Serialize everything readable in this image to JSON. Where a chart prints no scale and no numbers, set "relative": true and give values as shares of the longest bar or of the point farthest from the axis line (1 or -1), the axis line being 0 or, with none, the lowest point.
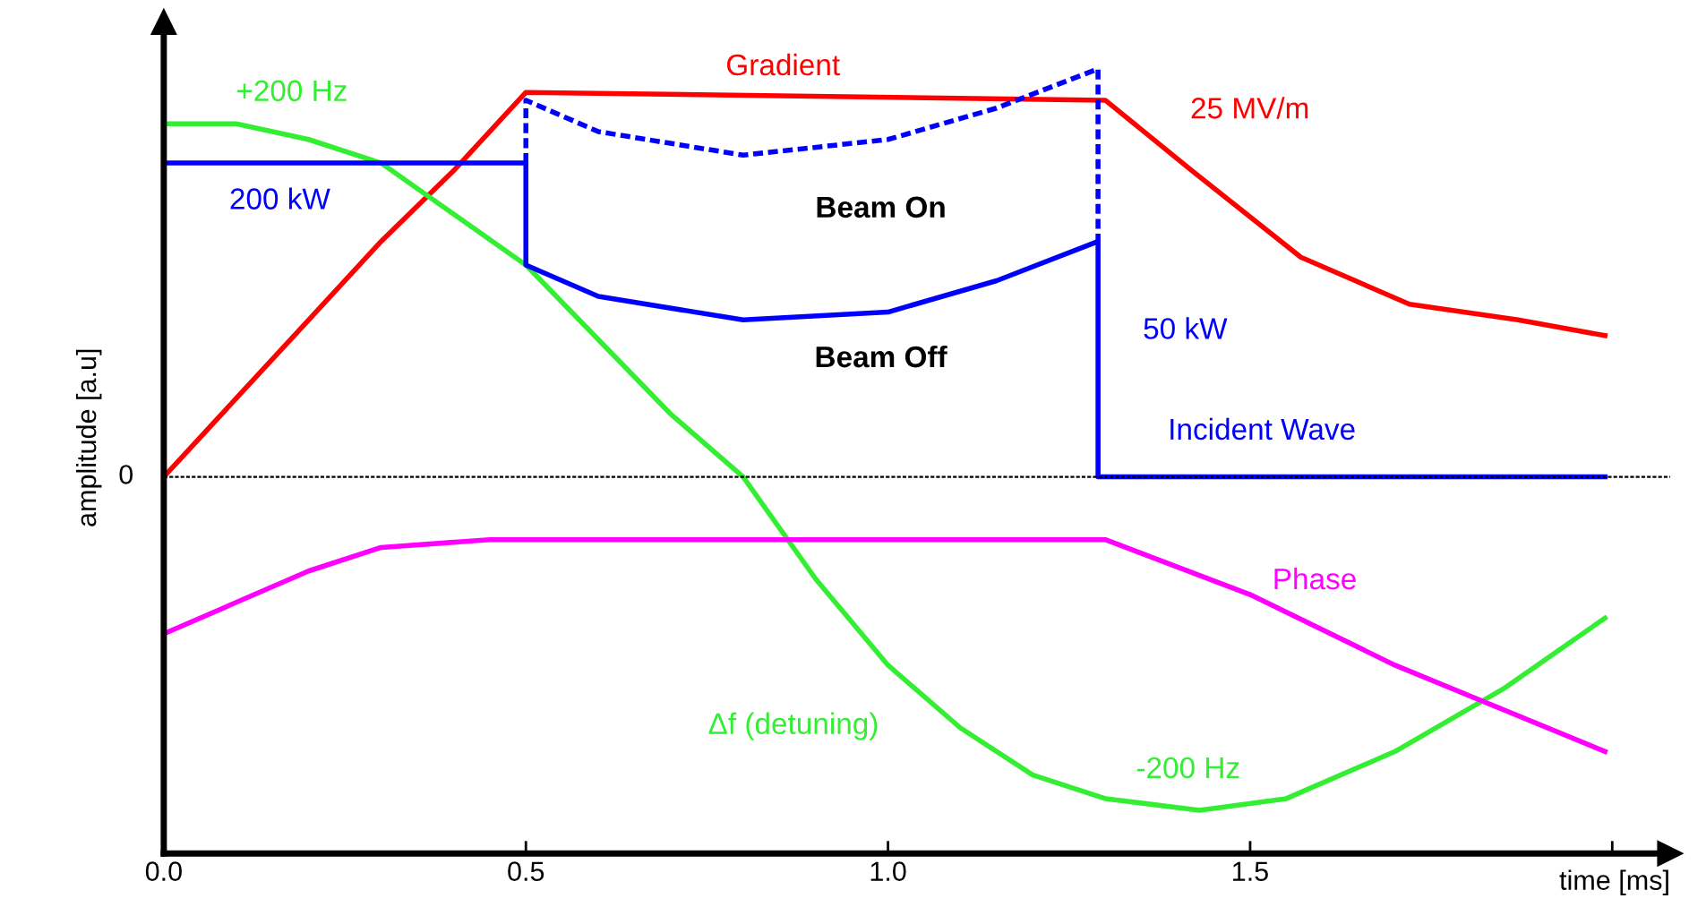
{
  "chart_data": {
    "type": "line",
    "relative": true,
    "xlabel": "time [ms]",
    "ylabel": "amplitude [a.u]",
    "xlim": [
      0,
      2.08
    ],
    "xticks": [
      {
        "value": 0,
        "label": "0.0"
      },
      0.5,
      {
        "value": 1,
        "label": "1.0"
      },
      1.5,
      {
        "value": 2,
        "label": null
      }
    ],
    "grid": false,
    "legend": false,
    "line_style": "solid",
    "marker": "none",
    "ref_lines": [
      {
        "axis": "y",
        "value": 0.48,
        "label": "0",
        "color": "#000000",
        "line_style": "dashed"
      }
    ],
    "series": [
      {
        "name": "Gradient",
        "color": "#ff0000",
        "x": [
          0,
          0.1,
          0.2,
          0.3,
          0.4,
          0.5,
          1.3,
          1.42,
          1.57,
          1.72,
          1.87,
          1.99
        ],
        "values": [
          0.48,
          0.58,
          0.68,
          0.78,
          0.87,
          0.97,
          0.96,
          0.87,
          0.76,
          0.7,
          0.68,
          0.66
        ]
      },
      {
        "name": "Δf (detuning)",
        "color": "#33ee33",
        "x": [
          0,
          0.1,
          0.2,
          0.3,
          0.5,
          0.7,
          0.8,
          0.9,
          1.0,
          1.1,
          1.2,
          1.3,
          1.43,
          1.55,
          1.7,
          1.85,
          1.99
        ],
        "values": [
          0.93,
          0.93,
          0.91,
          0.88,
          0.75,
          0.56,
          0.48,
          0.35,
          0.24,
          0.16,
          0.1,
          0.07,
          0.055,
          0.07,
          0.13,
          0.21,
          0.3
        ]
      },
      {
        "name": "Phase",
        "color": "#ff00ff",
        "x": [
          0,
          0.1,
          0.2,
          0.3,
          0.45,
          1.3,
          1.5,
          1.7,
          1.99
        ],
        "values": [
          0.28,
          0.32,
          0.36,
          0.39,
          0.4,
          0.4,
          0.33,
          0.24,
          0.13
        ]
      },
      {
        "name": "Incident Wave",
        "color": "#0000ff",
        "x": [
          0,
          0.5,
          0.5,
          0.6,
          0.8,
          1.0,
          1.15,
          1.29,
          1.29,
          1.99
        ],
        "values": [
          0.88,
          0.88,
          0.75,
          0.71,
          0.68,
          0.69,
          0.73,
          0.78,
          0.48,
          0.48
        ]
      },
      {
        "color": "#0000ff",
        "line_style": "dashed",
        "x": [
          0.5,
          0.5,
          0.6,
          0.8,
          1.0,
          1.15,
          1.29,
          1.29
        ],
        "values": [
          0.88,
          0.96,
          0.92,
          0.89,
          0.91,
          0.95,
          1.0,
          0.78
        ]
      }
    ],
    "annotations": [
      "25 MV/m",
      "+200 Hz",
      "200 kW",
      "Beam On",
      "Beam Off",
      "50 kW",
      "-200 Hz"
    ]
  }
}
